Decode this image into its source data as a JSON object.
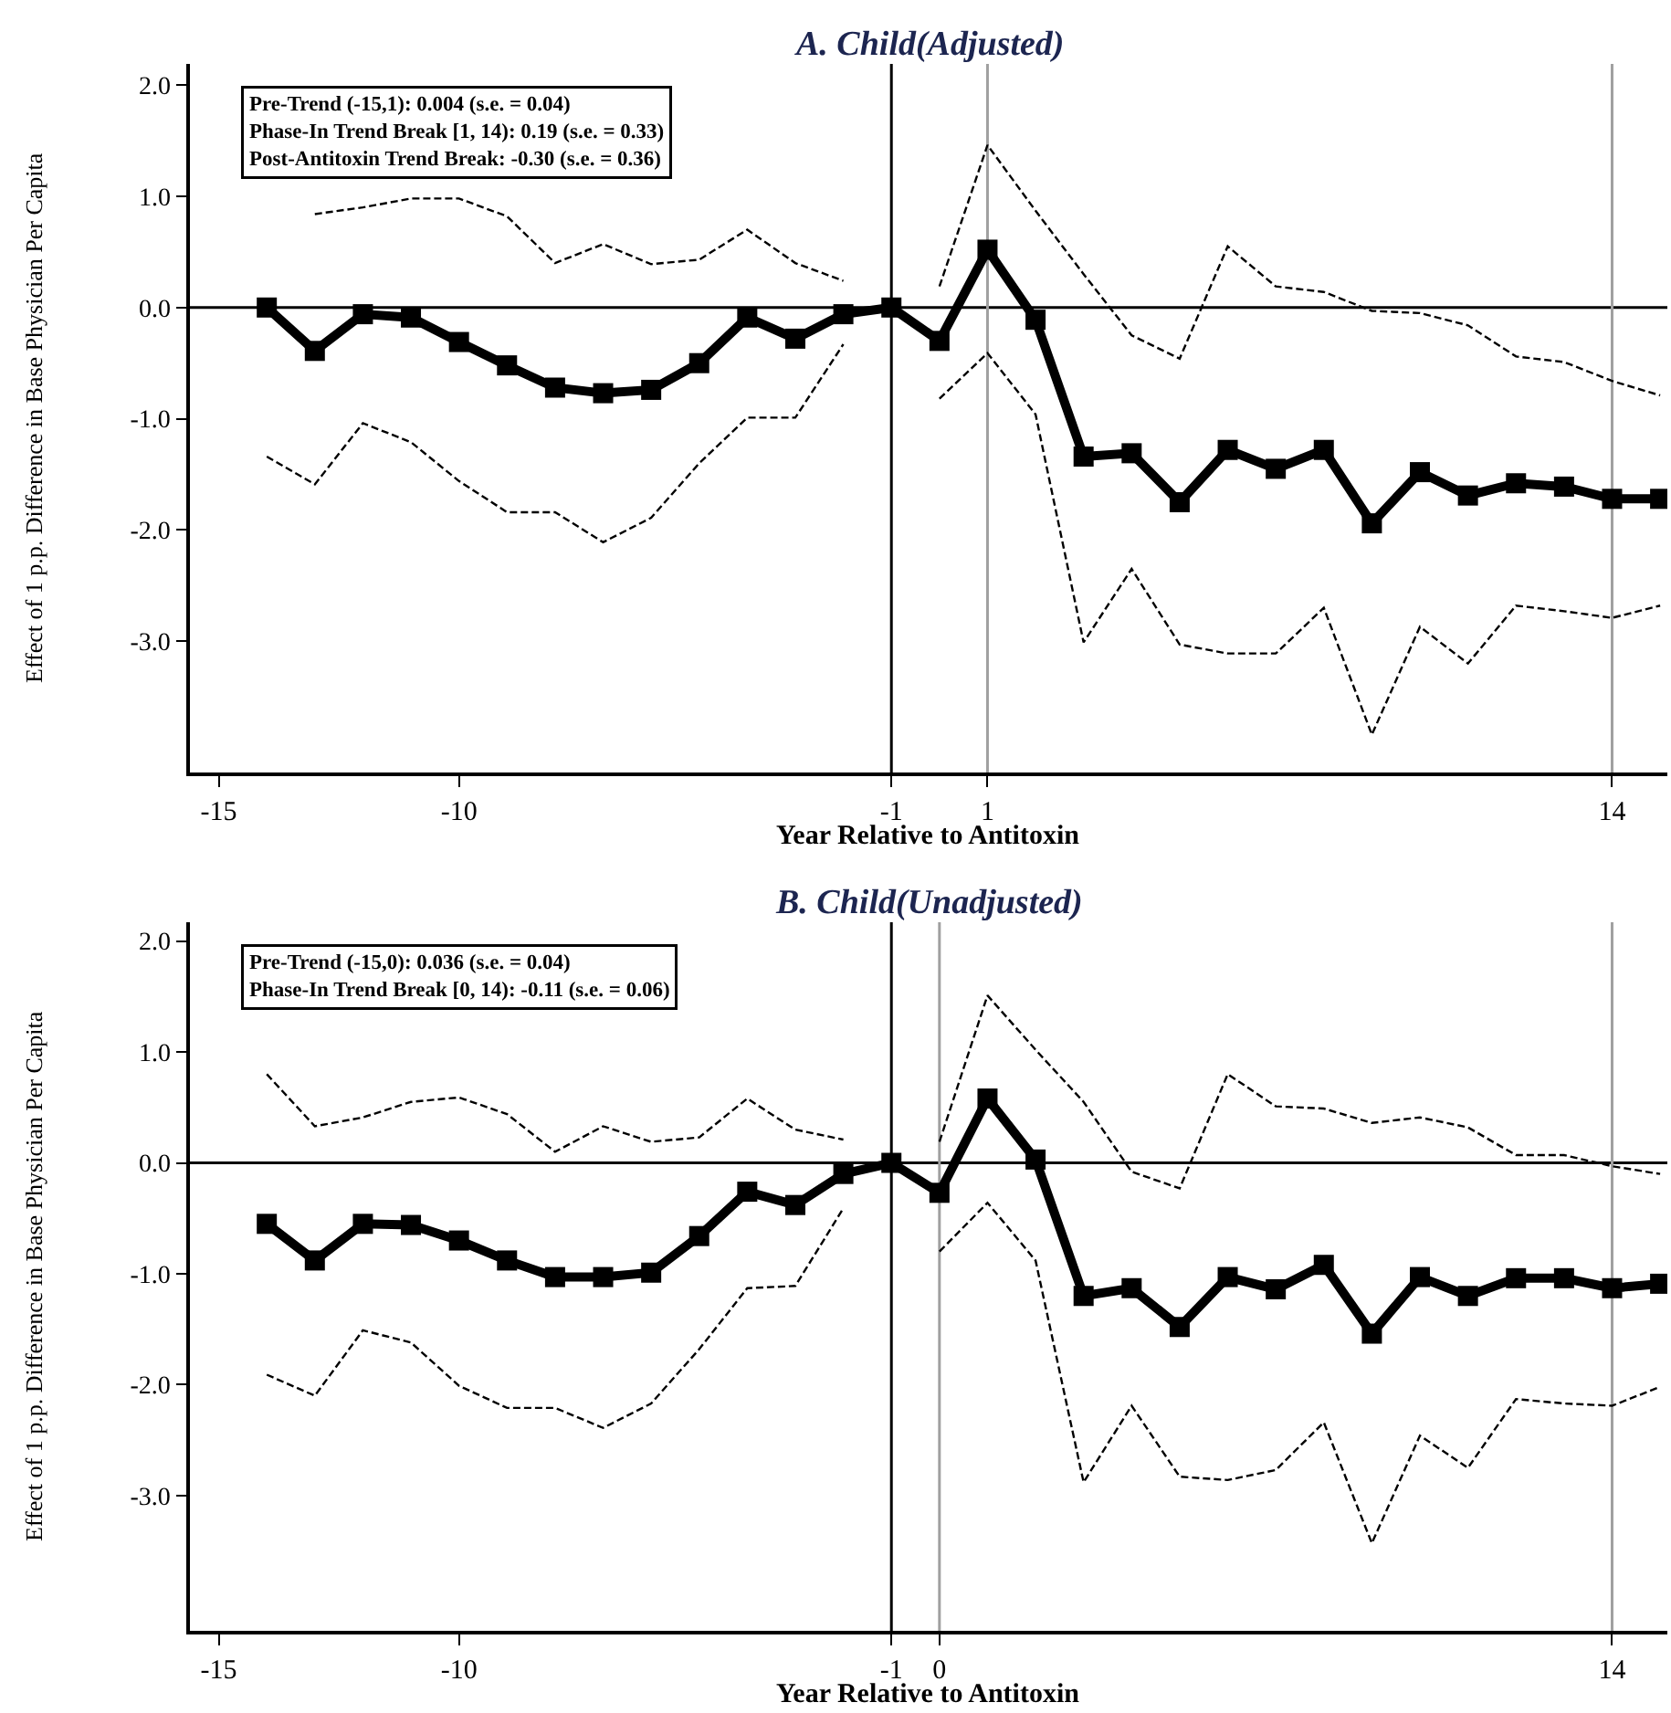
{
  "chart_data": [
    {
      "type": "line",
      "title": "A. Child(Adjusted)",
      "xlabel": "Year Relative to Antitoxin",
      "ylabel": "Effect of 1 p.p. Difference in Base Physician Per Capita",
      "x": [
        -14,
        -13,
        -12,
        -11,
        -10,
        -9,
        -8,
        -7,
        -6,
        -5,
        -4,
        -3,
        -2,
        -1,
        0,
        1,
        2,
        3,
        4,
        5,
        6,
        7,
        8,
        9,
        10,
        11,
        12,
        13,
        14,
        15
      ],
      "series": [
        {
          "color": "#000000",
          "marker": "square",
          "line_style": "solid",
          "values": [
            0.0,
            -0.39,
            -0.06,
            -0.09,
            -0.31,
            -0.52,
            -0.72,
            -0.77,
            -0.74,
            -0.5,
            -0.09,
            -0.28,
            -0.06,
            0.0,
            -0.3,
            0.52,
            -0.11,
            -1.34,
            -1.31,
            -1.75,
            -1.28,
            -1.45,
            -1.28,
            -1.94,
            -1.48,
            -1.69,
            -1.58,
            -1.61,
            -1.72,
            -1.72
          ]
        },
        {
          "color": "#000000",
          "marker": "none",
          "line_style": "dashed",
          "values": [
            null,
            0.84,
            0.9,
            0.98,
            0.98,
            0.82,
            0.4,
            0.57,
            0.39,
            0.43,
            0.7,
            0.4,
            0.24,
            null,
            0.19,
            1.46,
            0.87,
            0.3,
            -0.25,
            -0.46,
            0.55,
            0.19,
            0.14,
            -0.03,
            -0.05,
            -0.16,
            -0.44,
            -0.49,
            -0.66,
            -0.79
          ]
        },
        {
          "color": "#000000",
          "marker": "none",
          "line_style": "dashed",
          "values": [
            -1.34,
            -1.59,
            -1.04,
            -1.21,
            -1.56,
            -1.84,
            -1.84,
            -2.11,
            -1.89,
            -1.4,
            -0.99,
            -0.99,
            -0.33,
            null,
            -0.82,
            -0.41,
            -0.96,
            -3.01,
            -2.35,
            -3.03,
            -3.11,
            -3.11,
            -2.7,
            -3.84,
            -2.87,
            -3.2,
            -2.68,
            -2.73,
            -2.79,
            -2.68
          ]
        }
      ],
      "xlim": [
        -15.6,
        15.15
      ],
      "ylim": [
        -4.18,
        2.19
      ],
      "xticks": [
        -15,
        -10,
        -1,
        1,
        14
      ],
      "yticks": [
        {
          "value": 2,
          "label": "2.0"
        },
        {
          "value": 1,
          "label": "1.0"
        },
        {
          "value": 0,
          "label": "0.0"
        },
        {
          "value": -1,
          "label": "-1.0"
        },
        {
          "value": -2,
          "label": "-2.0"
        },
        {
          "value": -3,
          "label": "-3.0"
        }
      ],
      "ref_lines": [
        {
          "axis": "y",
          "value": 0,
          "color": "#000000"
        },
        {
          "axis": "x",
          "value": -1,
          "color": "#000000"
        },
        {
          "axis": "x",
          "value": 1,
          "color": "#a0a0a0"
        },
        {
          "axis": "x",
          "value": 14,
          "color": "#a0a0a0"
        }
      ],
      "annotations": [
        "Pre-Trend (-15,1): 0.004 (s.e. = 0.04)",
        "Phase-In Trend Break [1, 14): 0.19 (s.e. = 0.33)",
        "Post-Antitoxin Trend Break: -0.30 (s.e. = 0.36)"
      ],
      "grid": false
    },
    {
      "type": "line",
      "title": "B. Child(Unadjusted)",
      "xlabel": "Year Relative to Antitoxin",
      "ylabel": "Effect of 1 p.p. Difference in Base Physician Per Capita",
      "x": [
        -14,
        -13,
        -12,
        -11,
        -10,
        -9,
        -8,
        -7,
        -6,
        -5,
        -4,
        -3,
        -2,
        -1,
        0,
        1,
        2,
        3,
        4,
        5,
        6,
        7,
        8,
        9,
        10,
        11,
        12,
        13,
        14,
        15
      ],
      "series": [
        {
          "color": "#000000",
          "marker": "square",
          "line_style": "solid",
          "values": [
            -0.55,
            -0.88,
            -0.55,
            -0.56,
            -0.7,
            -0.88,
            -1.03,
            -1.03,
            -0.99,
            -0.66,
            -0.26,
            -0.38,
            -0.1,
            0.0,
            -0.27,
            0.58,
            0.03,
            -1.2,
            -1.13,
            -1.48,
            -1.03,
            -1.14,
            -0.92,
            -1.54,
            -1.03,
            -1.2,
            -1.04,
            -1.04,
            -1.13,
            -1.09
          ]
        },
        {
          "color": "#000000",
          "marker": "none",
          "line_style": "dashed",
          "values": [
            0.8,
            0.33,
            0.41,
            0.55,
            0.59,
            0.44,
            0.1,
            0.33,
            0.19,
            0.23,
            0.58,
            0.3,
            0.21,
            null,
            0.19,
            1.51,
            1.02,
            0.55,
            -0.08,
            -0.23,
            0.8,
            0.51,
            0.49,
            0.36,
            0.41,
            0.32,
            0.07,
            0.07,
            -0.03,
            -0.1
          ]
        },
        {
          "color": "#000000",
          "marker": "none",
          "line_style": "dashed",
          "values": [
            -1.91,
            -2.1,
            -1.51,
            -1.62,
            -2.01,
            -2.21,
            -2.21,
            -2.39,
            -2.17,
            -1.68,
            -1.13,
            -1.11,
            -0.41,
            null,
            -0.8,
            -0.36,
            -0.88,
            -2.88,
            -2.19,
            -2.83,
            -2.86,
            -2.77,
            -2.34,
            -3.43,
            -2.46,
            -2.75,
            -2.13,
            -2.17,
            -2.19,
            -2.02
          ]
        }
      ],
      "xlim": [
        -15.6,
        15.15
      ],
      "ylim": [
        -4.22,
        2.17
      ],
      "xticks": [
        -15,
        -10,
        -1,
        0,
        14
      ],
      "yticks": [
        {
          "value": 2,
          "label": "2.0"
        },
        {
          "value": 1,
          "label": "1.0"
        },
        {
          "value": 0,
          "label": "0.0"
        },
        {
          "value": -1,
          "label": "-1.0"
        },
        {
          "value": -2,
          "label": "-2.0"
        },
        {
          "value": -3,
          "label": "-3.0"
        }
      ],
      "ref_lines": [
        {
          "axis": "y",
          "value": 0,
          "color": "#000000"
        },
        {
          "axis": "x",
          "value": -1,
          "color": "#000000"
        },
        {
          "axis": "x",
          "value": 0,
          "color": "#a0a0a0"
        },
        {
          "axis": "x",
          "value": 14,
          "color": "#a0a0a0"
        }
      ],
      "annotations": [
        "Pre-Trend (-15,0): 0.036 (s.e. = 0.04)",
        "Phase-In Trend Break [0, 14): -0.11 (s.e. = 0.06)"
      ],
      "grid": false
    }
  ]
}
